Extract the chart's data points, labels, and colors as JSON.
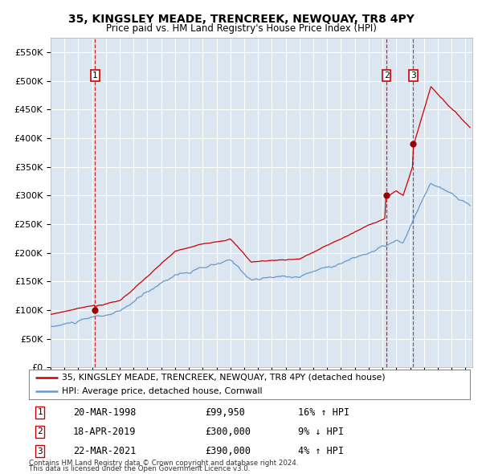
{
  "title": "35, KINGSLEY MEADE, TRENCREEK, NEWQUAY, TR8 4PY",
  "subtitle": "Price paid vs. HM Land Registry's House Price Index (HPI)",
  "legend_line1": "35, KINGSLEY MEADE, TRENCREEK, NEWQUAY, TR8 4PY (detached house)",
  "legend_line2": "HPI: Average price, detached house, Cornwall",
  "footer1": "Contains HM Land Registry data © Crown copyright and database right 2024.",
  "footer2": "This data is licensed under the Open Government Licence v3.0.",
  "transactions": [
    {
      "num": 1,
      "date": "20-MAR-1998",
      "price": 99950,
      "pct": "16%",
      "dir": "↑"
    },
    {
      "num": 2,
      "date": "18-APR-2019",
      "price": 300000,
      "pct": "9%",
      "dir": "↓"
    },
    {
      "num": 3,
      "date": "22-MAR-2021",
      "price": 390000,
      "pct": "4%",
      "dir": "↑"
    }
  ],
  "transaction_dates_decimal": [
    1998.22,
    2019.29,
    2021.22
  ],
  "transaction_prices": [
    99950,
    300000,
    390000
  ],
  "vline_dates_decimal": [
    1998.22,
    2019.29
  ],
  "vline3_date_decimal": 2021.22,
  "red_line_color": "#cc0000",
  "blue_line_color": "#6699cc",
  "bg_color": "#dce6f0",
  "grid_color": "#ffffff",
  "point_color": "#990000",
  "vline_color": "#cc0000",
  "vline3_color": "#555555",
  "ylim": [
    0,
    575000
  ],
  "xlim_start": 1995.0,
  "xlim_end": 2025.5
}
